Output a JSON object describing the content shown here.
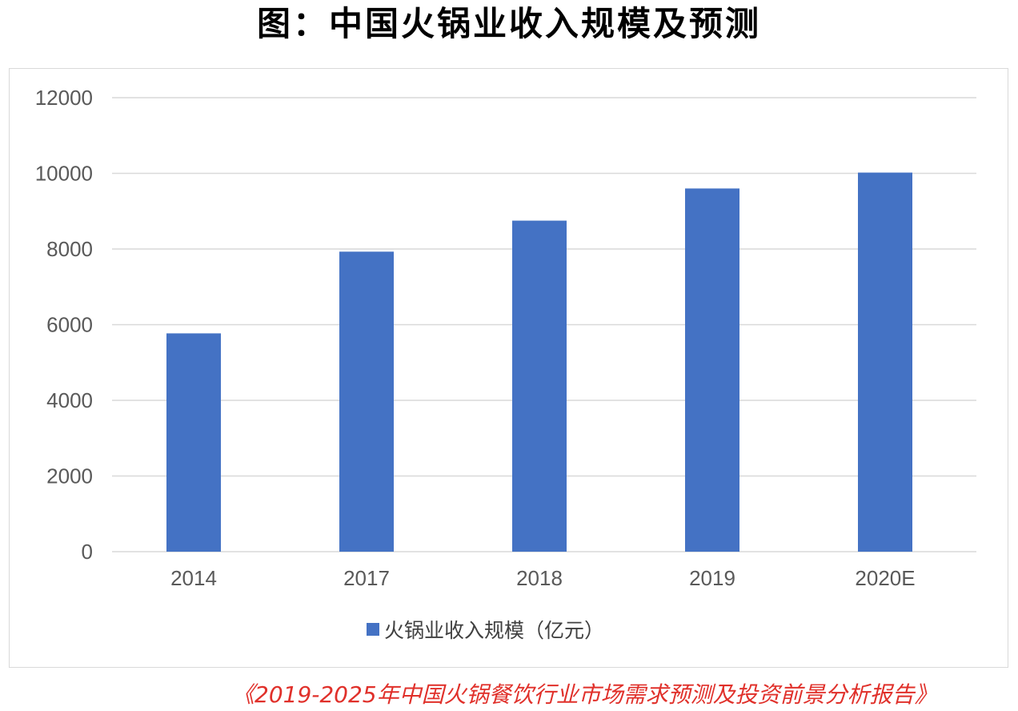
{
  "title": "图：中国火锅业收入规模及预测",
  "source": "《2019-2025年中国火锅餐饮行业市场需求预测及投资前景分析报告》",
  "chart_data": {
    "type": "bar",
    "categories": [
      "2014",
      "2017",
      "2018",
      "2019",
      "2020E"
    ],
    "series": [
      {
        "name": "火锅业收入规模（亿元）",
        "values": [
          5770,
          7930,
          8750,
          9600,
          10020
        ],
        "color": "#4472c4"
      }
    ],
    "ylim": [
      0,
      12000
    ],
    "yticks": [
      0,
      2000,
      4000,
      6000,
      8000,
      10000,
      12000
    ],
    "grid": true,
    "legend_position": "bottom"
  }
}
